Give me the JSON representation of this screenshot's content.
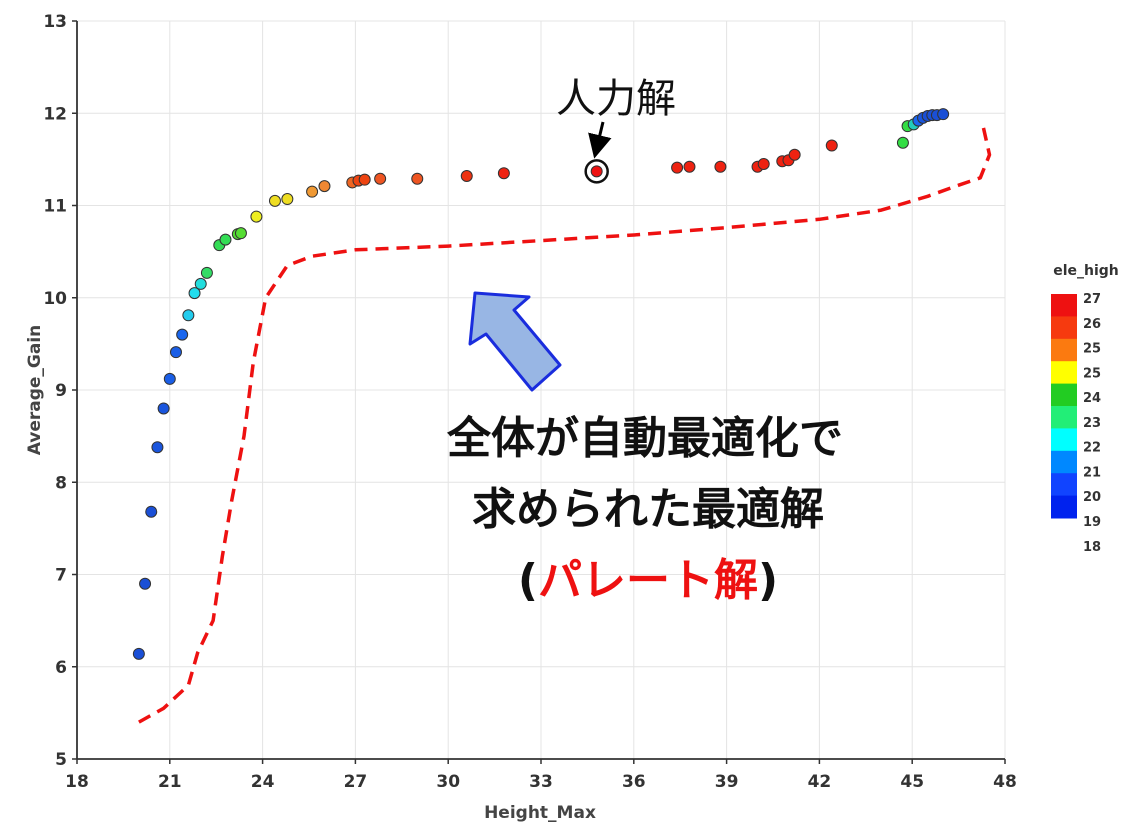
{
  "chart_data": {
    "type": "scatter",
    "xlabel": "Height_Max",
    "ylabel": "Average_Gain",
    "xlim": [
      18,
      48
    ],
    "ylim": [
      5,
      13
    ],
    "xticks": [
      18,
      21,
      24,
      27,
      30,
      33,
      36,
      39,
      42,
      45,
      48
    ],
    "yticks": [
      5,
      6,
      7,
      8,
      9,
      10,
      11,
      12,
      13
    ],
    "grid": true,
    "colorbar": {
      "title": "ele_high",
      "labels": [
        "27",
        "26",
        "25",
        "25",
        "24",
        "23",
        "22",
        "21",
        "20",
        "19",
        "18"
      ],
      "colors": [
        "#ee1111",
        "#f63a0f",
        "#fb7a10",
        "#ffff00",
        "#22cc22",
        "#22ee77",
        "#00ffff",
        "#0088ff",
        "#1144ff",
        "#0022ee"
      ]
    },
    "points": [
      {
        "x": 20.0,
        "y": 6.14,
        "c": "#1a4fd6"
      },
      {
        "x": 20.2,
        "y": 6.9,
        "c": "#1a4fd6"
      },
      {
        "x": 20.4,
        "y": 7.68,
        "c": "#1a4fd6"
      },
      {
        "x": 20.6,
        "y": 8.38,
        "c": "#1a55dd"
      },
      {
        "x": 20.8,
        "y": 8.8,
        "c": "#1a55dd"
      },
      {
        "x": 21.0,
        "y": 9.12,
        "c": "#1a5ee6"
      },
      {
        "x": 21.2,
        "y": 9.41,
        "c": "#1a5ee6"
      },
      {
        "x": 21.4,
        "y": 9.6,
        "c": "#1a66ee"
      },
      {
        "x": 21.6,
        "y": 9.81,
        "c": "#22ccee"
      },
      {
        "x": 21.8,
        "y": 10.05,
        "c": "#22ddee"
      },
      {
        "x": 22.0,
        "y": 10.15,
        "c": "#22dddd"
      },
      {
        "x": 22.2,
        "y": 10.27,
        "c": "#33dd66"
      },
      {
        "x": 22.6,
        "y": 10.57,
        "c": "#33dd55"
      },
      {
        "x": 22.8,
        "y": 10.63,
        "c": "#33dd55"
      },
      {
        "x": 23.2,
        "y": 10.69,
        "c": "#55dd33"
      },
      {
        "x": 23.3,
        "y": 10.7,
        "c": "#55dd33"
      },
      {
        "x": 23.8,
        "y": 10.88,
        "c": "#eeee22"
      },
      {
        "x": 24.4,
        "y": 11.05,
        "c": "#eedd22"
      },
      {
        "x": 24.8,
        "y": 11.07,
        "c": "#eedd22"
      },
      {
        "x": 25.6,
        "y": 11.15,
        "c": "#f09933"
      },
      {
        "x": 26.0,
        "y": 11.21,
        "c": "#f08833"
      },
      {
        "x": 26.9,
        "y": 11.25,
        "c": "#ee6622"
      },
      {
        "x": 27.1,
        "y": 11.27,
        "c": "#ee4411"
      },
      {
        "x": 27.3,
        "y": 11.28,
        "c": "#ee4411"
      },
      {
        "x": 27.8,
        "y": 11.29,
        "c": "#ee5522"
      },
      {
        "x": 29.0,
        "y": 11.29,
        "c": "#ee5522"
      },
      {
        "x": 30.6,
        "y": 11.32,
        "c": "#ee3311"
      },
      {
        "x": 31.8,
        "y": 11.35,
        "c": "#ee2211"
      },
      {
        "x": 37.4,
        "y": 11.41,
        "c": "#ee2211"
      },
      {
        "x": 37.8,
        "y": 11.42,
        "c": "#ee2211"
      },
      {
        "x": 38.8,
        "y": 11.42,
        "c": "#ee2211"
      },
      {
        "x": 40.0,
        "y": 11.42,
        "c": "#ee2211"
      },
      {
        "x": 40.2,
        "y": 11.45,
        "c": "#ee2211"
      },
      {
        "x": 40.8,
        "y": 11.48,
        "c": "#ee2211"
      },
      {
        "x": 41.0,
        "y": 11.49,
        "c": "#ee2211"
      },
      {
        "x": 41.2,
        "y": 11.55,
        "c": "#ee2211"
      },
      {
        "x": 42.4,
        "y": 11.65,
        "c": "#ee2211"
      },
      {
        "x": 44.7,
        "y": 11.68,
        "c": "#33dd44"
      },
      {
        "x": 44.85,
        "y": 11.86,
        "c": "#33dd44"
      },
      {
        "x": 45.05,
        "y": 11.88,
        "c": "#22ccbb"
      },
      {
        "x": 45.2,
        "y": 11.92,
        "c": "#1a66ee"
      },
      {
        "x": 45.35,
        "y": 11.95,
        "c": "#1a55dd"
      },
      {
        "x": 45.5,
        "y": 11.97,
        "c": "#1a4fd6"
      },
      {
        "x": 45.65,
        "y": 11.98,
        "c": "#1a4fd6"
      },
      {
        "x": 45.8,
        "y": 11.98,
        "c": "#1a4fd6"
      },
      {
        "x": 46.0,
        "y": 11.99,
        "c": "#1a4fd6"
      }
    ],
    "manual_solution": {
      "x": 34.8,
      "y": 11.37,
      "label": "人力解"
    },
    "pareto_curve": [
      [
        20.0,
        5.4
      ],
      [
        20.8,
        5.55
      ],
      [
        21.6,
        5.8
      ],
      [
        21.9,
        6.15
      ],
      [
        22.4,
        6.5
      ],
      [
        22.7,
        7.2
      ],
      [
        23.0,
        7.8
      ],
      [
        23.4,
        8.5
      ],
      [
        23.7,
        9.3
      ],
      [
        24.1,
        10.0
      ],
      [
        24.8,
        10.35
      ],
      [
        25.6,
        10.45
      ],
      [
        27.0,
        10.52
      ],
      [
        30.0,
        10.56
      ],
      [
        33.0,
        10.62
      ],
      [
        36.0,
        10.68
      ],
      [
        39.0,
        10.76
      ],
      [
        42.0,
        10.85
      ],
      [
        44.0,
        10.95
      ],
      [
        45.5,
        11.1
      ],
      [
        46.5,
        11.22
      ],
      [
        47.2,
        11.3
      ],
      [
        47.5,
        11.55
      ],
      [
        47.3,
        11.85
      ]
    ],
    "annotation": {
      "line1": "全体が自動最適化で",
      "line2": "求められた最適解",
      "open_paren": "(",
      "highlight": "パレート解",
      "close_paren": ")"
    }
  }
}
